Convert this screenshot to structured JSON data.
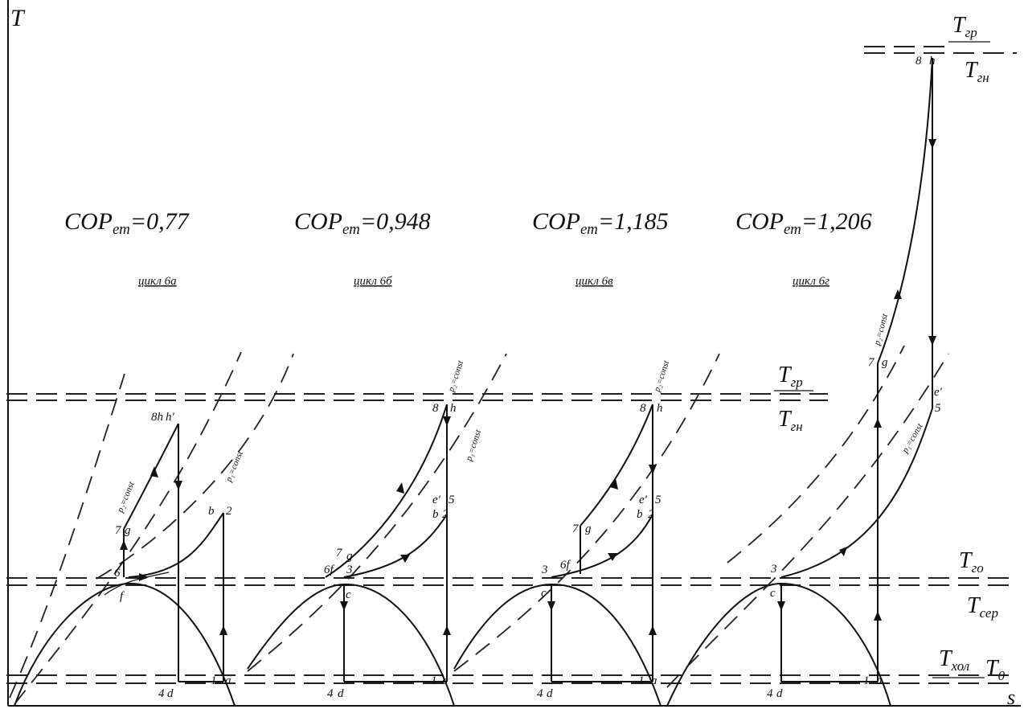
{
  "axes": {
    "y_label": "T",
    "x_label": "s"
  },
  "cop_label": "COP",
  "cop_subscript": "ет",
  "cycles": [
    {
      "cop_value": "=0,77",
      "cycle_label": "цикл 6а"
    },
    {
      "cop_value": "=0,948",
      "cycle_label": "цикл 6б"
    },
    {
      "cop_value": "=1,185",
      "cycle_label": "цикл 6в"
    },
    {
      "cop_value": "=1,206",
      "cycle_label": "цикл 6г"
    }
  ],
  "temperature_levels": [
    {
      "main": "T",
      "sub": "гр"
    },
    {
      "main": "T",
      "sub": "гн"
    },
    {
      "main": "T",
      "sub": "гр"
    },
    {
      "main": "T",
      "sub": "гн"
    },
    {
      "main": "T",
      "sub": "го"
    },
    {
      "main": "T",
      "sub": "сер"
    },
    {
      "main": "T",
      "sub": "хол"
    },
    {
      "main": "T",
      "sub": "0"
    }
  ],
  "isobars": [
    "p₂=const",
    "p₁=const"
  ],
  "point_labels": {
    "c1": [
      "8h",
      "h'",
      "7",
      "g",
      "b",
      "2",
      "6",
      "f",
      "4",
      "d",
      "1",
      "a"
    ],
    "c2": [
      "8",
      "h",
      "7",
      "g",
      "6f",
      "3",
      "c",
      "e'",
      "5",
      "b",
      "2",
      "4",
      "d",
      "1",
      "a"
    ],
    "c3": [
      "8",
      "h",
      "7",
      "g",
      "6f",
      "3",
      "c",
      "e'",
      "5",
      "b",
      "2",
      "4",
      "d",
      "1",
      "a"
    ],
    "c4": [
      "8",
      "h",
      "7",
      "g",
      "e'",
      "5",
      "3",
      "c",
      "4",
      "d",
      "1",
      "a"
    ]
  }
}
